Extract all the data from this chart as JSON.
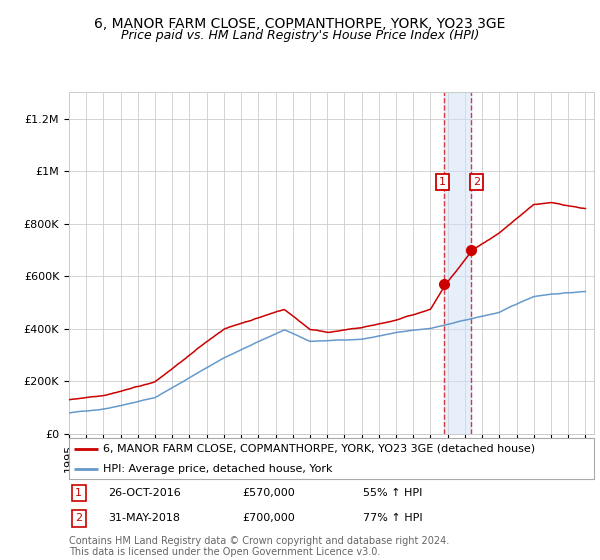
{
  "title1": "6, MANOR FARM CLOSE, COPMANTHORPE, YORK, YO23 3GE",
  "title2": "Price paid vs. HM Land Registry's House Price Index (HPI)",
  "ylim": [
    0,
    1300000
  ],
  "yticks": [
    0,
    200000,
    400000,
    600000,
    800000,
    1000000,
    1200000
  ],
  "ytick_labels": [
    "£0",
    "£200K",
    "£400K",
    "£600K",
    "£800K",
    "£1M",
    "£1.2M"
  ],
  "red_line_color": "#cc0000",
  "blue_line_color": "#6699cc",
  "legend_red_label": "6, MANOR FARM CLOSE, COPMANTHORPE, YORK, YO23 3GE (detached house)",
  "legend_blue_label": "HPI: Average price, detached house, York",
  "footer": "Contains HM Land Registry data © Crown copyright and database right 2024.\nThis data is licensed under the Open Government Licence v3.0.",
  "bg_color": "#ffffff",
  "grid_color": "#cccccc",
  "title_fontsize": 10,
  "subtitle_fontsize": 9,
  "tick_fontsize": 8,
  "legend_fontsize": 8,
  "footer_fontsize": 7
}
